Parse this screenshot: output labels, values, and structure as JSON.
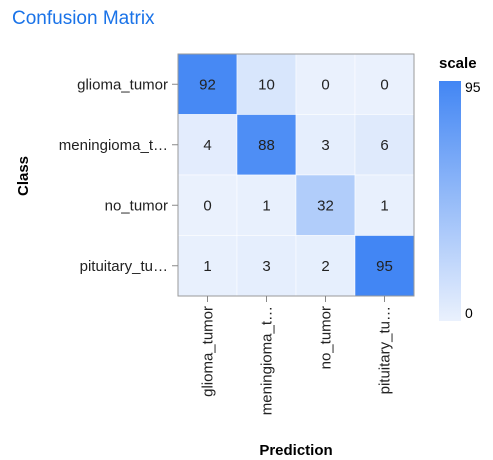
{
  "page": {
    "title": "Confusion Matrix"
  },
  "chart_data": {
    "type": "heatmap",
    "title": "Confusion Matrix",
    "xlabel": "Prediction",
    "ylabel": "Class",
    "x_categories": [
      "glioma_tumor",
      "meningioma_t…",
      "no_tumor",
      "pituitary_tu…"
    ],
    "y_categories": [
      "glioma_tumor",
      "meningioma_t…",
      "no_tumor",
      "pituitary_tu…"
    ],
    "values": [
      [
        92,
        10,
        0,
        0
      ],
      [
        4,
        88,
        3,
        6
      ],
      [
        0,
        1,
        32,
        1
      ],
      [
        1,
        3,
        2,
        95
      ]
    ],
    "legend": {
      "title": "scale",
      "min_label": "0",
      "max_label": "95",
      "min": 0,
      "max": 95,
      "placement": "right"
    },
    "colors": {
      "low": "#eaf1fd",
      "high": "#4286f4",
      "title": "#1a73e8"
    }
  }
}
